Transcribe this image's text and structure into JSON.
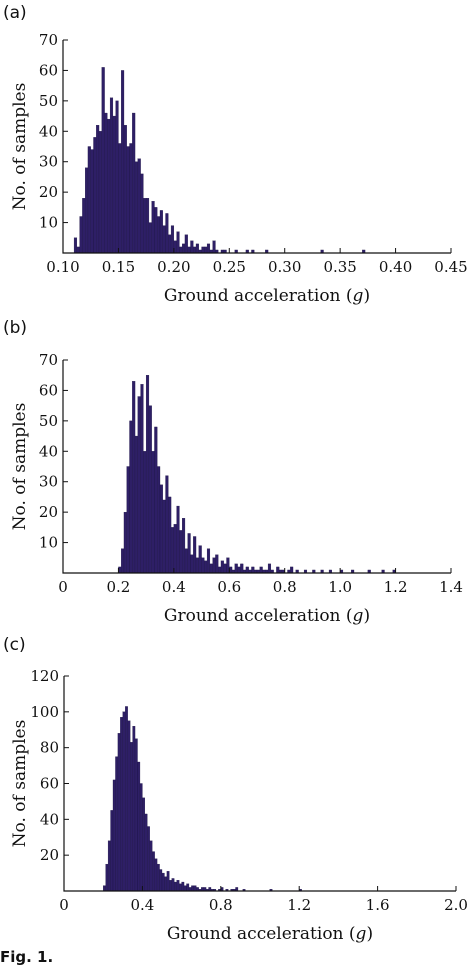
{
  "caption": "Fig. 1.",
  "chart_data": [
    {
      "type": "bar",
      "panel_label": "(a)",
      "xlabel_text": "Ground acceleration (",
      "xlabel_unit": "g",
      "xlabel_close": ")",
      "ylabel": "No. of samples",
      "xlim": [
        0.1,
        0.45
      ],
      "ylim": [
        0,
        70
      ],
      "xticks": [
        "0.10",
        "0.15",
        "0.20",
        "0.25",
        "0.30",
        "0.35",
        "0.40",
        "0.45"
      ],
      "yticks": [
        "10",
        "20",
        "30",
        "40",
        "50",
        "60",
        "70"
      ],
      "bin_start": 0.11,
      "bin_width": 0.0025,
      "values": [
        5,
        2,
        12,
        18,
        28,
        35,
        34,
        38,
        42,
        40,
        61,
        46,
        44,
        51,
        45,
        50,
        36,
        60,
        42,
        35,
        36,
        46,
        30,
        31,
        26,
        18,
        18,
        10,
        17,
        15,
        12,
        14,
        9,
        13,
        6,
        9,
        4,
        7,
        2,
        3,
        6,
        2,
        4,
        2,
        3,
        1,
        2,
        2,
        3,
        1,
        4,
        1,
        0,
        1,
        1,
        0,
        0,
        0,
        1,
        0,
        0,
        0,
        1,
        0,
        1,
        0,
        0,
        0,
        0,
        1,
        0,
        0,
        0,
        0,
        0,
        0,
        0,
        0,
        0,
        0,
        0,
        0,
        0,
        0,
        0,
        0,
        0,
        0,
        0,
        1,
        0,
        0,
        0,
        0,
        0,
        0,
        0,
        0,
        0,
        0,
        0,
        0,
        0,
        0,
        1,
        0,
        0,
        0,
        0,
        0
      ]
    },
    {
      "type": "bar",
      "panel_label": "(b)",
      "xlabel_text": "Ground acceleration (",
      "xlabel_unit": "g",
      "xlabel_close": ")",
      "ylabel": "No. of samples",
      "xlim": [
        0,
        1.4
      ],
      "ylim": [
        0,
        70
      ],
      "xticks": [
        "0",
        "0.2",
        "0.4",
        "0.6",
        "0.8",
        "1.0",
        "1.2",
        "1.4"
      ],
      "yticks": [
        "10",
        "20",
        "30",
        "40",
        "50",
        "60",
        "70"
      ],
      "bin_start": 0.2,
      "bin_width": 0.01,
      "values": [
        2,
        8,
        20,
        35,
        50,
        63,
        45,
        58,
        62,
        40,
        65,
        55,
        40,
        48,
        35,
        29,
        24,
        32,
        25,
        15,
        16,
        22,
        14,
        18,
        8,
        13,
        6,
        12,
        5,
        9,
        5,
        4,
        8,
        3,
        5,
        6,
        2,
        4,
        3,
        5,
        2,
        1,
        3,
        2,
        3,
        1,
        2,
        1,
        2,
        1,
        1,
        2,
        1,
        1,
        3,
        1,
        0,
        2,
        1,
        1,
        0,
        1,
        2,
        0,
        1,
        0,
        0,
        1,
        0,
        0,
        1,
        0,
        0,
        1,
        0,
        0,
        1,
        0,
        0,
        0,
        1,
        0,
        0,
        0,
        1,
        0,
        0,
        0,
        0,
        0,
        1,
        0,
        0,
        0,
        0,
        1,
        0,
        0,
        0,
        1,
        0,
        0,
        0,
        0
      ]
    },
    {
      "type": "bar",
      "panel_label": "(c)",
      "xlabel_text": "Ground acceleration (",
      "xlabel_unit": "g",
      "xlabel_close": ")",
      "ylabel": "No. of samples",
      "xlim": [
        0,
        2.0
      ],
      "ylim": [
        0,
        120
      ],
      "xticks": [
        "0",
        "0.4",
        "0.8",
        "1.2",
        "1.6",
        "2.0"
      ],
      "yticks": [
        "20",
        "40",
        "60",
        "80",
        "100",
        "120"
      ],
      "bin_start": 0.2,
      "bin_width": 0.0125,
      "values": [
        3,
        15,
        28,
        45,
        62,
        75,
        88,
        97,
        100,
        103,
        95,
        83,
        92,
        85,
        72,
        60,
        52,
        43,
        36,
        28,
        22,
        18,
        15,
        12,
        10,
        8,
        11,
        6,
        7,
        5,
        6,
        4,
        5,
        3,
        4,
        2,
        3,
        3,
        2,
        1,
        2,
        2,
        1,
        2,
        1,
        1,
        0,
        1,
        2,
        0,
        1,
        0,
        1,
        1,
        2,
        0,
        0,
        1,
        0,
        0,
        0,
        0,
        0,
        0,
        0,
        0,
        0,
        0,
        1,
        0,
        0,
        0,
        0,
        0,
        0,
        0,
        0,
        0,
        0,
        0,
        1,
        0,
        0,
        0,
        0,
        0,
        0,
        0,
        0,
        0,
        0,
        0,
        0,
        0,
        0,
        0,
        0,
        0,
        0,
        0,
        0,
        0,
        0,
        0,
        0,
        0,
        0,
        0,
        0,
        0,
        0,
        0,
        0,
        0,
        0,
        0,
        0,
        0,
        0,
        0,
        0,
        0,
        0,
        0,
        0,
        0,
        0,
        0,
        0,
        0,
        0,
        0,
        0,
        0,
        0,
        0,
        0,
        0,
        0,
        0,
        0,
        0,
        0,
        0,
        0,
        0,
        0,
        0,
        0,
        0,
        0,
        0,
        0,
        0,
        0,
        0,
        0,
        0,
        0,
        0,
        0,
        0,
        0,
        0,
        0,
        0,
        0,
        0,
        0,
        0,
        0,
        0,
        0,
        0,
        0,
        0,
        0,
        0,
        0,
        0,
        0,
        0,
        0,
        0,
        0,
        1,
        0,
        0,
        0,
        0
      ]
    }
  ]
}
